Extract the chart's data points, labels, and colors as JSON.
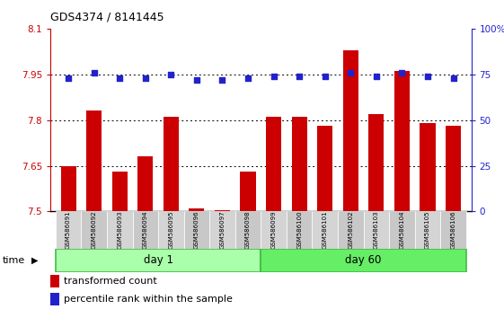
{
  "title": "GDS4374 / 8141445",
  "samples": [
    "GSM586091",
    "GSM586092",
    "GSM586093",
    "GSM586094",
    "GSM586095",
    "GSM586096",
    "GSM586097",
    "GSM586098",
    "GSM586099",
    "GSM586100",
    "GSM586101",
    "GSM586102",
    "GSM586103",
    "GSM586104",
    "GSM586105",
    "GSM586106"
  ],
  "red_values": [
    7.65,
    7.83,
    7.63,
    7.68,
    7.81,
    7.51,
    7.505,
    7.63,
    7.81,
    7.81,
    7.78,
    8.03,
    7.82,
    7.96,
    7.79,
    7.78
  ],
  "blue_values": [
    73,
    76,
    73,
    73,
    75,
    72,
    72,
    73,
    74,
    74,
    74,
    76,
    74,
    76,
    74,
    73
  ],
  "ylim_left": [
    7.5,
    8.1
  ],
  "ylim_right": [
    0,
    100
  ],
  "hlines": [
    7.65,
    7.8,
    7.95
  ],
  "day1_count": 8,
  "bar_color": "#cc0000",
  "dot_color": "#2222cc",
  "bar_baseline": 7.5,
  "legend_red": "transformed count",
  "legend_blue": "percentile rank within the sample"
}
